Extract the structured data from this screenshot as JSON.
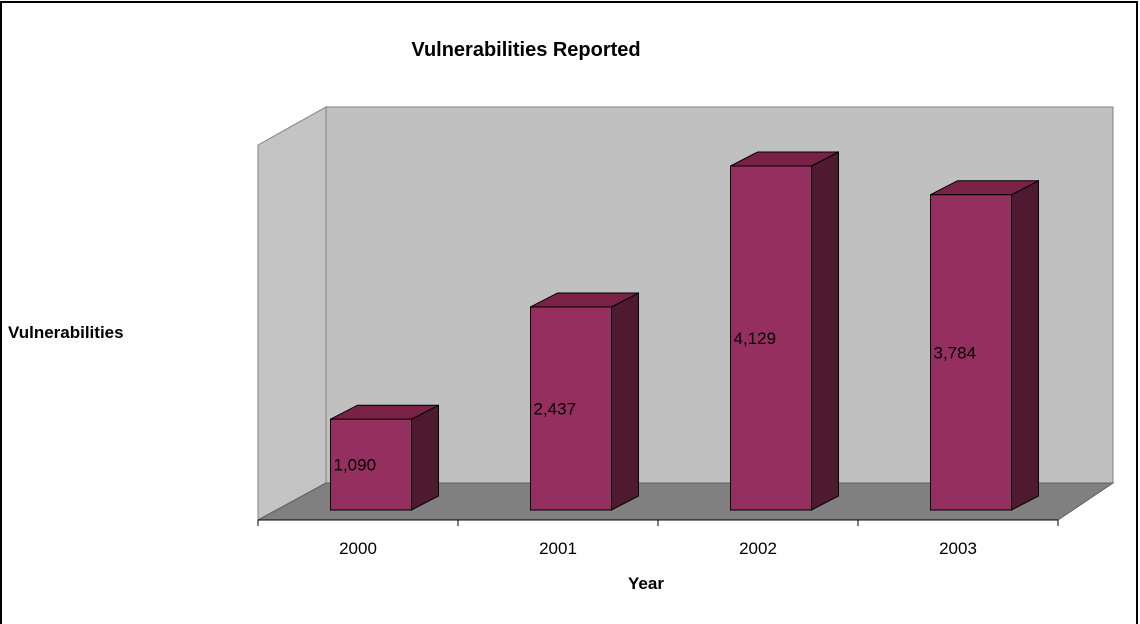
{
  "chart_data": {
    "type": "bar",
    "title": "Vulnerabilities Reported",
    "xlabel": "Year",
    "ylabel": "Vulnerabilities",
    "categories": [
      "2000",
      "2001",
      "2002",
      "2003"
    ],
    "values": [
      1090,
      2437,
      4129,
      3784
    ],
    "value_labels": [
      "1,090",
      "2,437",
      "4,129",
      "3,784"
    ],
    "ylim": [
      0,
      4500
    ],
    "grid": false,
    "legend": "none",
    "three_d": true,
    "colors": {
      "bar_front": "#952f5f",
      "bar_top": "#7a2148",
      "bar_side": "#4e1a30",
      "back_wall": "#c0c0c0",
      "side_wall": "#c4c4c4",
      "floor": "#808080"
    }
  }
}
